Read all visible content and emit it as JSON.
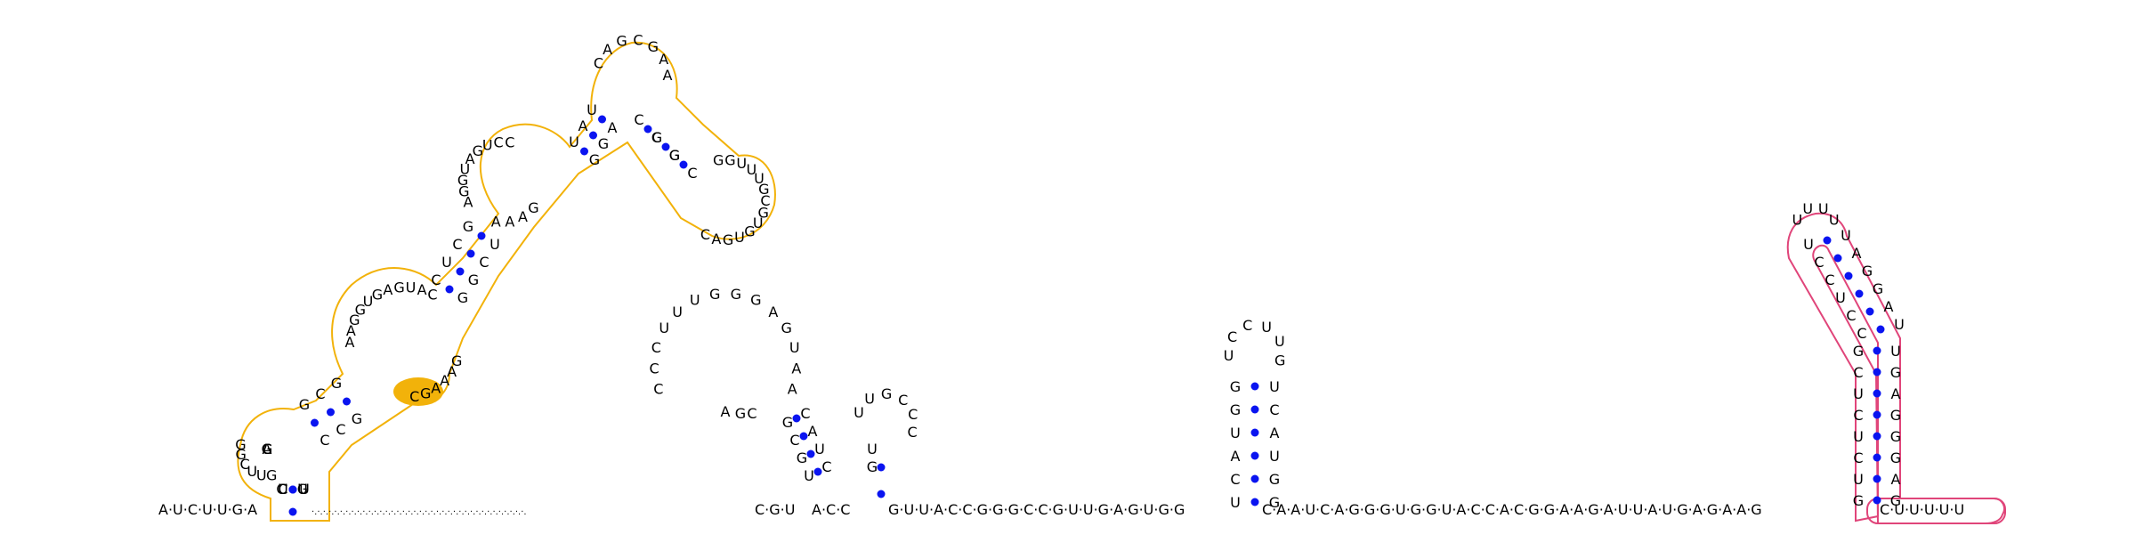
{
  "diagram": {
    "type": "rna-secondary-structure",
    "sequence": "AUCUUGAUCGGUGGCGAGGAGUACUGGUCCUACGAGCACGAAGGCCGGUCCAGUGUGUCGUGCCAAAGCUCGGCUGCCCUCCAAAGUUCCAUUCCCAAGACAACUCGGCUGGACUACUUUAGGAGCAACUCGCUUGUCGGGGCCUUUAAUCCGUGAAGAAUUGAAACCCCUUGGUACACGGGAGCACGGAGGAUUAUAUUAGGGGCACUUUUUU",
    "display_order_note": "",
    "colors": {
      "pair_dot": "#0a14f0",
      "backbone": "#000000",
      "highlight_yellow": "#f2b20a",
      "highlight_pink": "#e0457a",
      "dashed_link": "#000000"
    },
    "labels": {
      "baseline_5prime": "A·U·C·U·U·G·A",
      "baseline_run_1": "C·G·U",
      "baseline_run_2": "A·C·C",
      "baseline_run_3": "G·U·U·A·C·C·G·G·G·C·C·G·U·U·G·A·G·U·G·G",
      "baseline_run_4": "C·A·A·U·C·A·G·G·G·U·G·G·U·A·C·C·A·C·G·G·A·A·G·A·U·U·A·U·G·A·G·A·A·G",
      "baseline_3prime_tail": "C·U·U·U·U·U"
    }
  }
}
